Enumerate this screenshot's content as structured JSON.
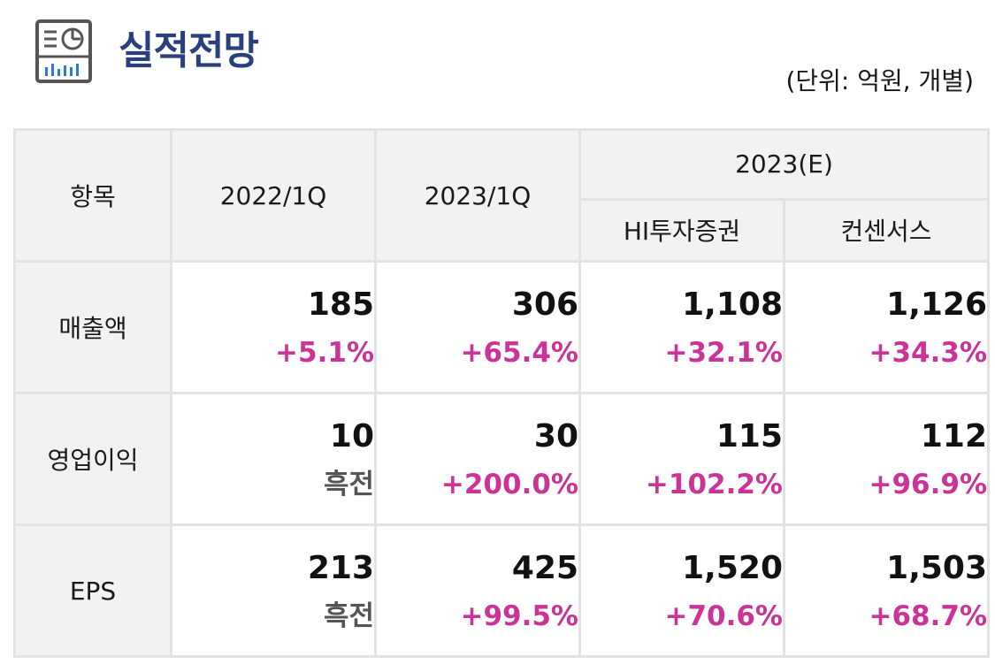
{
  "header": {
    "title": "실적전망",
    "unit": "(단위: 억원, 개별)",
    "icon": "report-chart-icon"
  },
  "colors": {
    "title": "#2a3f7e",
    "positive_change": "#cc3399",
    "neutral_change": "#555555",
    "header_bg": "#f2f2f2",
    "border": "#e2e2e2"
  },
  "table": {
    "headers": {
      "item": "항목",
      "q2022": "2022/1Q",
      "q2023": "2023/1Q",
      "forecast": "2023(E)",
      "hi": "HI투자증권",
      "consensus": "컨센서스"
    },
    "rows": [
      {
        "label": "매출액",
        "cells": [
          {
            "value": "185",
            "change": "+5.1%"
          },
          {
            "value": "306",
            "change": "+65.4%"
          },
          {
            "value": "1,108",
            "change": "+32.1%"
          },
          {
            "value": "1,126",
            "change": "+34.3%"
          }
        ]
      },
      {
        "label": "영업이익",
        "cells": [
          {
            "value": "10",
            "change": "흑전"
          },
          {
            "value": "30",
            "change": "+200.0%"
          },
          {
            "value": "115",
            "change": "+102.2%"
          },
          {
            "value": "112",
            "change": "+96.9%"
          }
        ]
      },
      {
        "label": "EPS",
        "cells": [
          {
            "value": "213",
            "change": "흑전"
          },
          {
            "value": "425",
            "change": "+99.5%"
          },
          {
            "value": "1,520",
            "change": "+70.6%"
          },
          {
            "value": "1,503",
            "change": "+68.7%"
          }
        ]
      }
    ]
  }
}
